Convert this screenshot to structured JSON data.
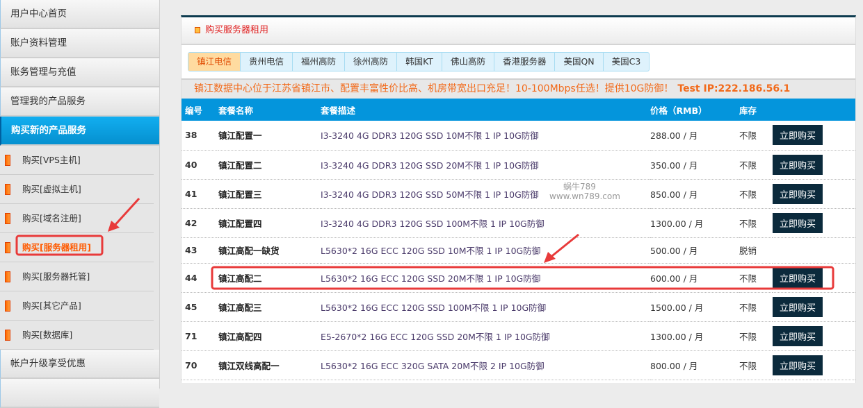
{
  "sidebar": {
    "main_top": [
      "用户中心首页",
      "账户资料管理",
      "账务管理与充值",
      "管理我的产品服务",
      "购买新的产品服务"
    ],
    "sub": [
      "购买[VPS主机]",
      "购买[虚拟主机]",
      "购买[域名注册]",
      "购买[服务器租用]",
      "购买[服务器托管]",
      "购买[其它产品]",
      "购买[数据库]"
    ],
    "main_bottom": [
      "帐户升级享受优惠"
    ]
  },
  "panel": {
    "title": "购买服务器租用"
  },
  "tabs": [
    "镇江电信",
    "贵州电信",
    "福州高防",
    "徐州高防",
    "韩国KT",
    "佛山高防",
    "香港服务器",
    "美国QN",
    "美国C3"
  ],
  "notice": {
    "text": "镇江数据中心位于江苏省镇江市、配置丰富性价比高、机房带宽出口充足！10-100Mbps任选！提供10G防御！",
    "test_ip": "Test IP:222.186.56.1"
  },
  "table": {
    "headers": [
      "编号",
      "套餐名称",
      "套餐描述",
      "价格（RMB）",
      "库存",
      ""
    ],
    "buy_label": "立即购买",
    "rows": [
      {
        "id": "38",
        "name": "镇江配置一",
        "desc": "I3-3240 4G DDR3 120G SSD 10M不限 1 IP 10G防御",
        "price": "288.00 / 月",
        "stock": "不限",
        "buy": true
      },
      {
        "id": "40",
        "name": "镇江配置二",
        "desc": "I3-3240 4G DDR3 120G SSD 20M不限 1 IP 10G防御",
        "price": "350.00 / 月",
        "stock": "不限",
        "buy": true
      },
      {
        "id": "41",
        "name": "镇江配置三",
        "desc": "I3-3240 4G DDR3 120G SSD 50M不限 1 IP 10G防御",
        "price": "850.00 / 月",
        "stock": "不限",
        "buy": true
      },
      {
        "id": "42",
        "name": "镇江配置四",
        "desc": "I3-3240 4G DDR3 120G SSD 100M不限 1 IP 10G防御",
        "price": "1300.00 / 月",
        "stock": "不限",
        "buy": true
      },
      {
        "id": "43",
        "name": "镇江高配一缺货",
        "desc": "L5630*2 16G ECC 120G SSD 10M不限 1 IP 10G防御",
        "price": "500.00 / 月",
        "stock": "脱销",
        "buy": false
      },
      {
        "id": "44",
        "name": "镇江高配二",
        "desc": "L5630*2 16G ECC 120G SSD 20M不限 1 IP 10G防御",
        "price": "600.00 / 月",
        "stock": "不限",
        "buy": true
      },
      {
        "id": "45",
        "name": "镇江高配三",
        "desc": "L5630*2 16G ECC 120G SSD 100M不限 1 IP 10G防御",
        "price": "1500.00 / 月",
        "stock": "不限",
        "buy": true
      },
      {
        "id": "71",
        "name": "镇江高配四",
        "desc": "E5-2670*2 16G ECC 120G SSD 20M不限 1 IP 10G防御",
        "price": "1300.00 / 月",
        "stock": "不限",
        "buy": true
      },
      {
        "id": "70",
        "name": "镇江双线高配一",
        "desc": "L5630*2 16G ECC 320G SATA 20M不限 2 IP 10G防御",
        "price": "800.00 / 月",
        "stock": "不限",
        "buy": true
      }
    ]
  },
  "watermark": {
    "line1": "蜗牛789",
    "line2": "www.wn789.com"
  },
  "colors": {
    "accent": "#0495dc",
    "highlight": "#e83a3a",
    "notice": "#f26a1a"
  }
}
